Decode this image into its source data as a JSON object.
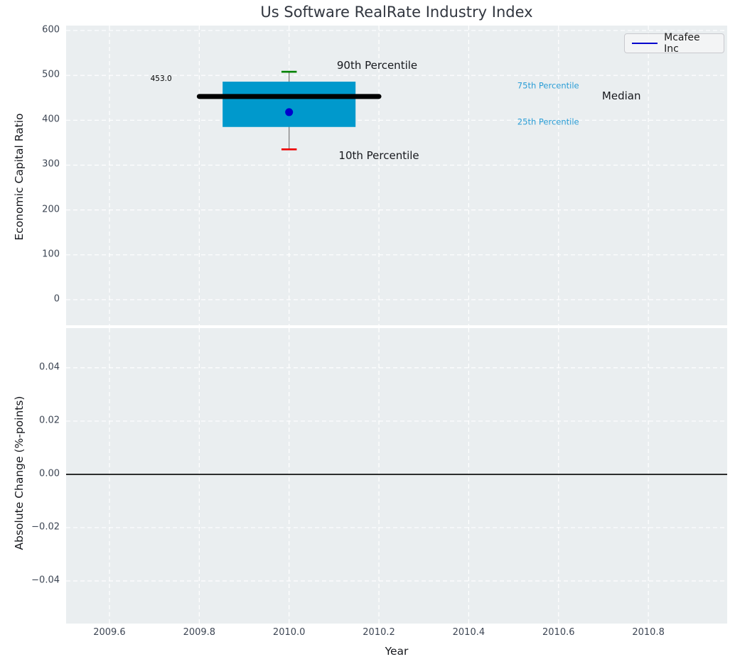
{
  "figure": {
    "title": "Us Software RealRate Industry Index",
    "legend": {
      "label": "Mcafee Inc"
    }
  },
  "colors": {
    "plot_bg": "#EAEEF0",
    "grid": "#FFFFFF",
    "tick_label": "#3D4654",
    "axis_label": "#16181D",
    "title": "#31363F",
    "box_fill": "#0099CC",
    "median_line": "#000000",
    "whisker": "#7F7F7F",
    "cap_90": "#008000",
    "cap_10": "#EE0000",
    "marker": "#0000CD",
    "legend_line": "#0000CD",
    "percentile_label": "#2A9DD6",
    "zero_line": "#000000"
  },
  "chart_data": [
    {
      "type": "boxplot",
      "title": "Us Software RealRate Industry Index",
      "ylabel": "Economic Capital Ratio",
      "series_name": "Mcafee Inc",
      "x_year": 2010,
      "stats": {
        "p10": 335,
        "p25": 385,
        "median": 453,
        "p75": 486,
        "p90": 508
      },
      "company_value": 418,
      "median_data_label": "453.0",
      "xlim": [
        2009.5035,
        2010.9755
      ],
      "ylim": [
        -57,
        611
      ],
      "grid": "dashed-white",
      "legend_position": "upper right",
      "yticks": [
        {
          "v": 0,
          "label": "0"
        },
        {
          "v": 100,
          "label": "100"
        },
        {
          "v": 200,
          "label": "200"
        },
        {
          "v": 300,
          "label": "300"
        },
        {
          "v": 400,
          "label": "400"
        },
        {
          "v": 500,
          "label": "500"
        },
        {
          "v": 600,
          "label": "600"
        }
      ],
      "widths": {
        "box_half": 0.148,
        "median_half": 0.2,
        "cap_half": 0.017
      },
      "annotations": [
        {
          "name": "median-value-annotation",
          "text": "453.0",
          "x": 2009.715,
          "y": 490,
          "color": "#000000",
          "size": 10.5
        },
        {
          "name": "p90-label",
          "text": "90th Percentile",
          "x": 2010.196,
          "y": 522,
          "color": "#16181D",
          "size": 15
        },
        {
          "name": "p10-label",
          "text": "10th Percentile",
          "x": 2010.2,
          "y": 321,
          "color": "#16181D",
          "size": 15
        },
        {
          "name": "p75-label",
          "text": "75th Percentile",
          "x": 2010.577,
          "y": 476,
          "color": "#2A9DD6",
          "size": 11.5
        },
        {
          "name": "median-label",
          "text": "Median",
          "x": 2010.74,
          "y": 454,
          "color": "#16181D",
          "size": 15
        },
        {
          "name": "p25-label",
          "text": "25th Percentile",
          "x": 2010.577,
          "y": 396,
          "color": "#2A9DD6",
          "size": 11.5
        }
      ]
    },
    {
      "type": "line",
      "ylabel": "Absolute Change (%-points)",
      "xlabel": "Year",
      "xlim": [
        2009.5035,
        2010.9755
      ],
      "ylim": [
        -0.056,
        0.0549
      ],
      "yticks": [
        {
          "v": 0.04,
          "label": "0.04"
        },
        {
          "v": 0.02,
          "label": "0.02"
        },
        {
          "v": 0,
          "label": "0.00"
        },
        {
          "v": -0.02,
          "label": "−0.02"
        },
        {
          "v": -0.04,
          "label": "−0.04"
        }
      ],
      "xticks": [
        {
          "v": 2009.6,
          "label": "2009.6"
        },
        {
          "v": 2009.8,
          "label": "2009.8"
        },
        {
          "v": 2010.0,
          "label": "2010.0"
        },
        {
          "v": 2010.2,
          "label": "2010.2"
        },
        {
          "v": 2010.4,
          "label": "2010.4"
        },
        {
          "v": 2010.6,
          "label": "2010.6"
        },
        {
          "v": 2010.8,
          "label": "2010.8"
        }
      ],
      "zero_line_y": 0,
      "series": []
    }
  ]
}
